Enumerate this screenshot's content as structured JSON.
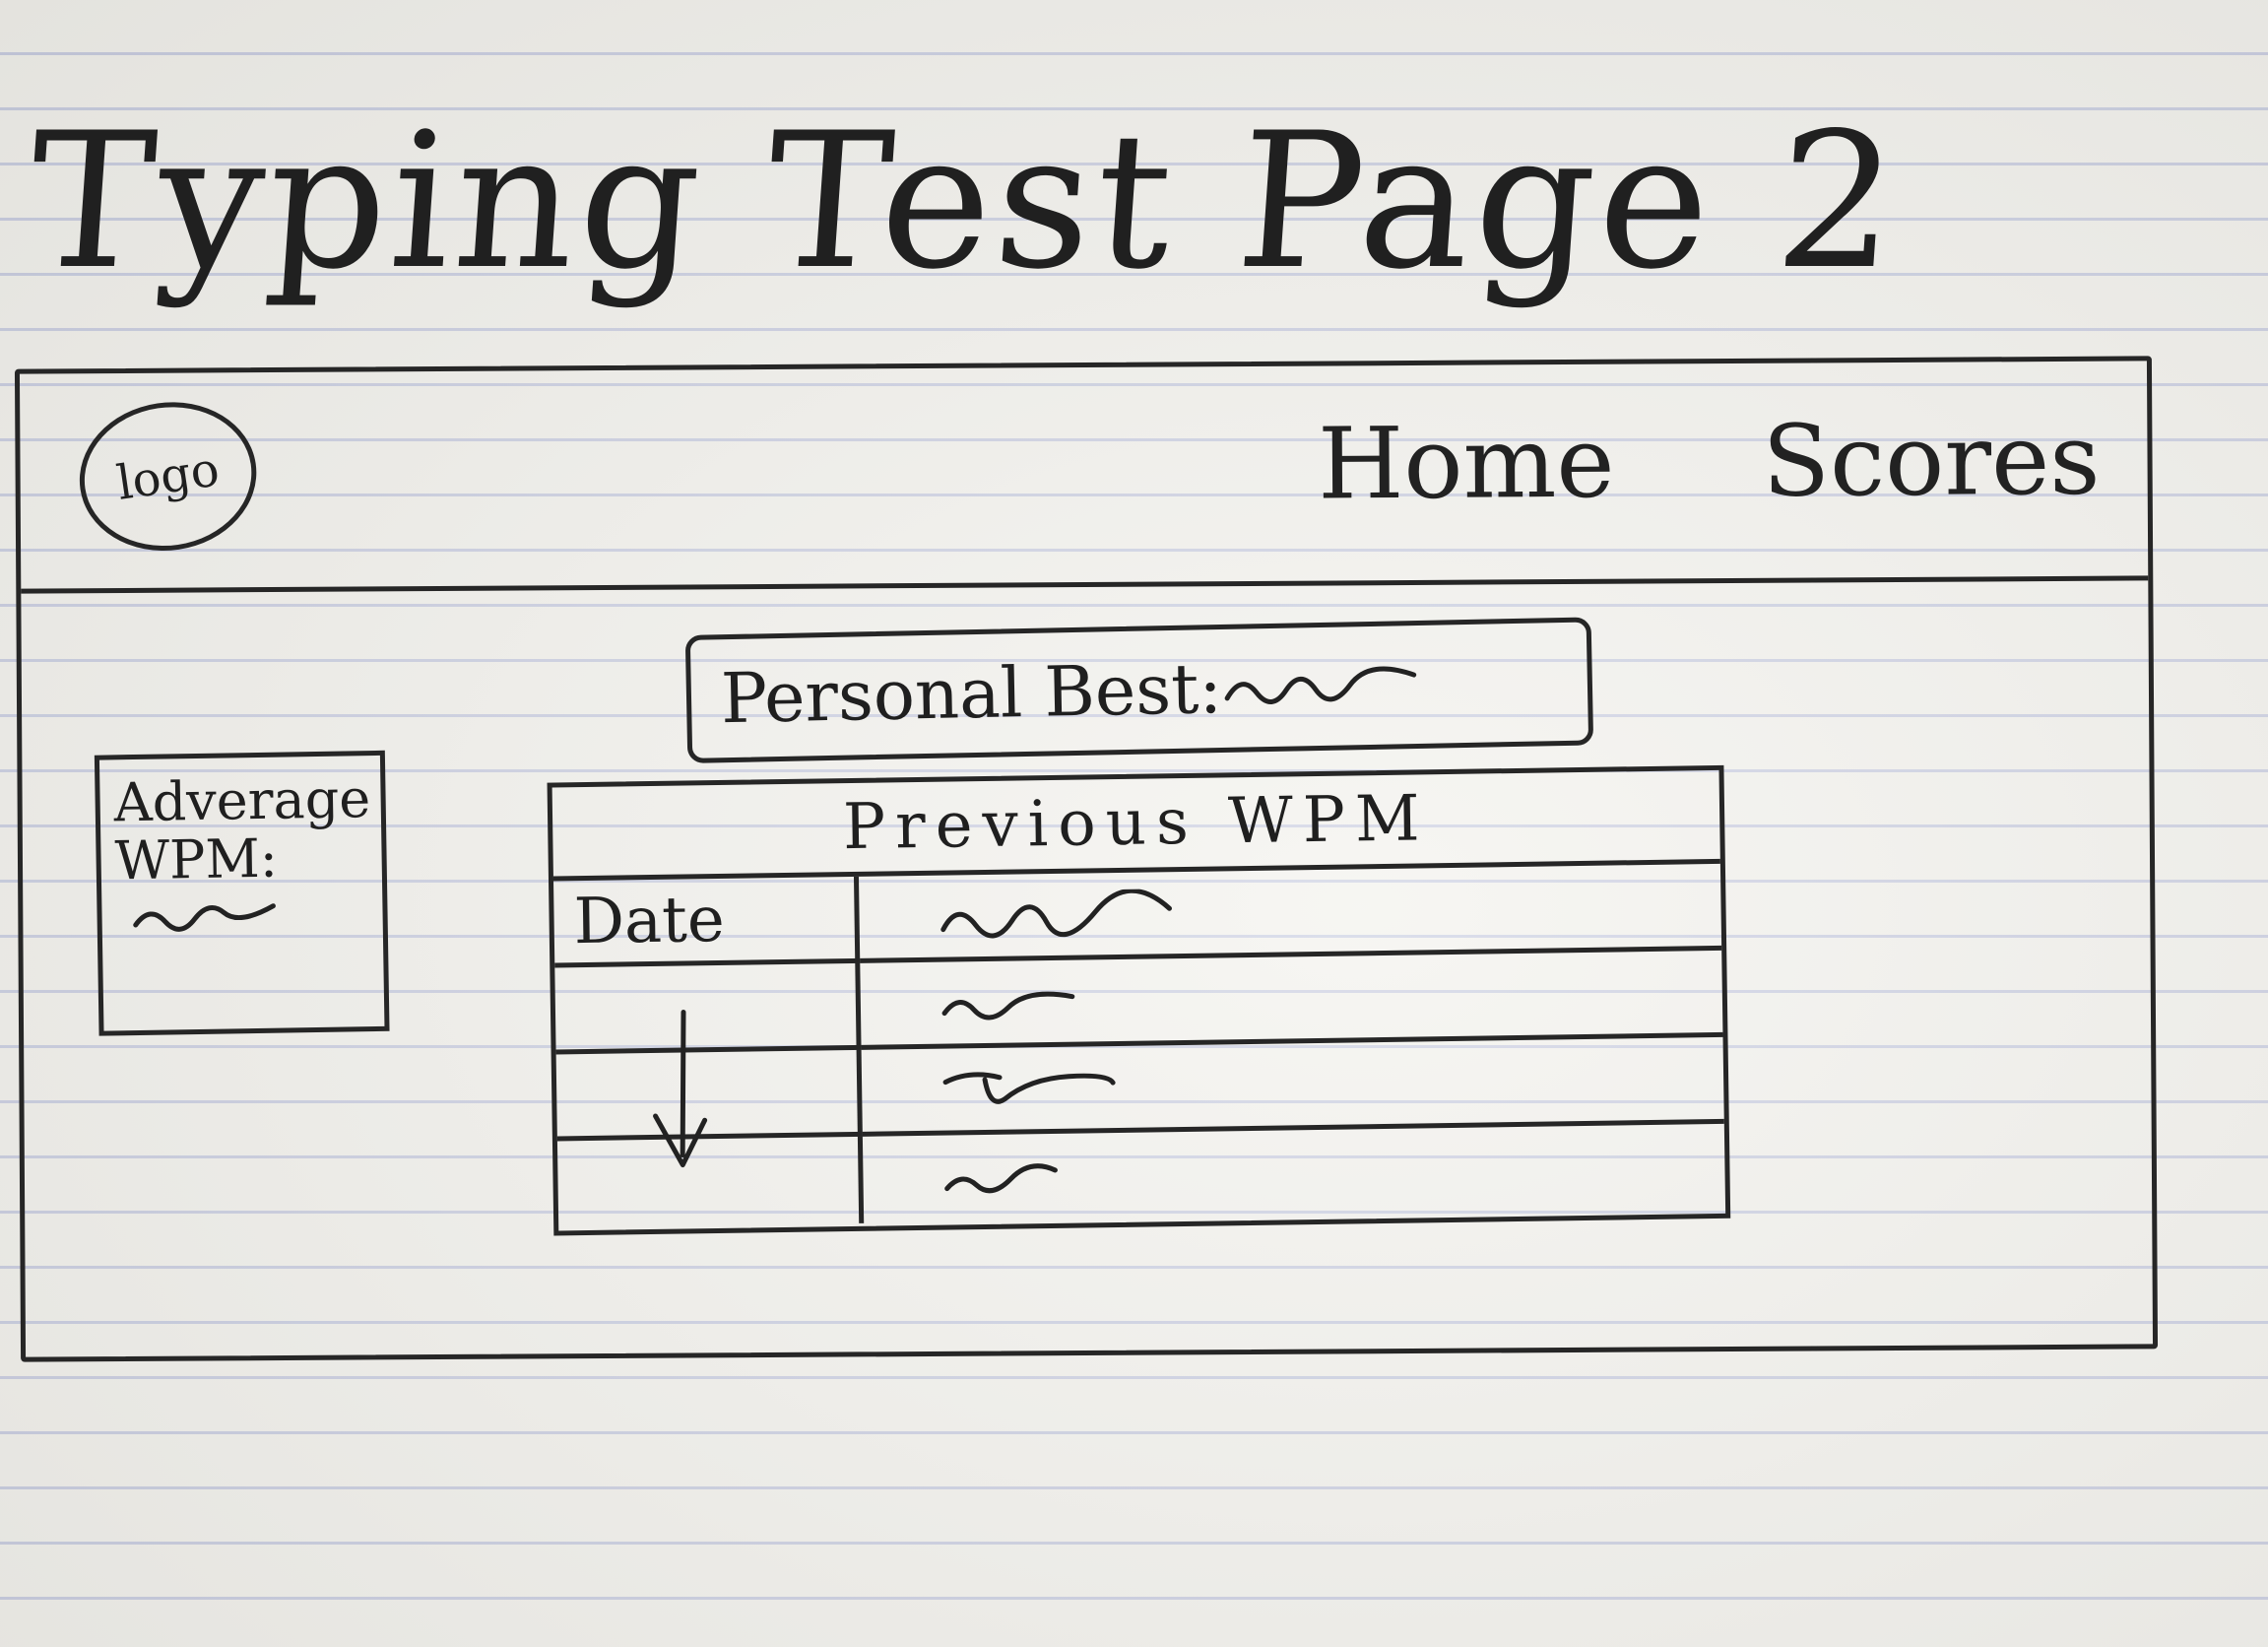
{
  "sheet_title": "Typing Test Page 2",
  "header": {
    "logo_label": "logo",
    "nav": [
      {
        "label": "Home"
      },
      {
        "label": "Scores"
      }
    ]
  },
  "personal_best": {
    "label": "Personal Best:"
  },
  "average": {
    "label": "Adverage\nWPM:"
  },
  "previous_wpm": {
    "title": "Previous WPM",
    "column_header": "Date"
  }
}
